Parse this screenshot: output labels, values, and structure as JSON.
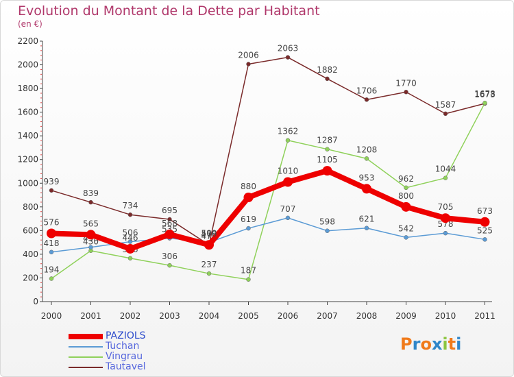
{
  "title": "Evolution du Montant de la Dette par Habitant",
  "subtitle": "(en €)",
  "logo": {
    "letters": [
      "P",
      "r",
      "o",
      "x",
      "i",
      "t",
      "i"
    ],
    "colors": [
      "#f07a1a",
      "#2f86c8",
      "#f07a1a",
      "#2f86c8",
      "#8bc53f",
      "#f07a1a",
      "#2f86c8"
    ]
  },
  "chart_data": {
    "type": "line",
    "x": [
      "2000",
      "2001",
      "2002",
      "2003",
      "2004",
      "2005",
      "2006",
      "2007",
      "2008",
      "2009",
      "2010",
      "2011"
    ],
    "ylim": [
      0,
      2200
    ],
    "yticks": [
      "0",
      "200",
      "400",
      "600",
      "800",
      "1000",
      "1200",
      "1400",
      "1600",
      "1800",
      "2000",
      "2200"
    ],
    "grid": false,
    "legend_position": "bottom-left",
    "series": [
      {
        "name": "Tautavel",
        "color": "#7a2a2a",
        "values": [
          939,
          839,
          734,
          695,
          479,
          2006,
          2063,
          1882,
          1706,
          1770,
          1587,
          1673
        ]
      },
      {
        "name": "Vingrau",
        "color": "#8fd15a",
        "values": [
          194,
          430,
          366,
          306,
          237,
          187,
          1362,
          1287,
          1208,
          962,
          1044,
          1678
        ]
      },
      {
        "name": "Tuchan",
        "color": "#5b9bd5",
        "values": [
          418,
          459,
          506,
          535,
          500,
          619,
          707,
          598,
          621,
          542,
          578,
          525
        ]
      },
      {
        "name": "PAZIOLS",
        "color": "#ee0000",
        "values": [
          576,
          565,
          446,
          568,
          479,
          880,
          1010,
          1105,
          953,
          800,
          705,
          673
        ]
      }
    ]
  }
}
